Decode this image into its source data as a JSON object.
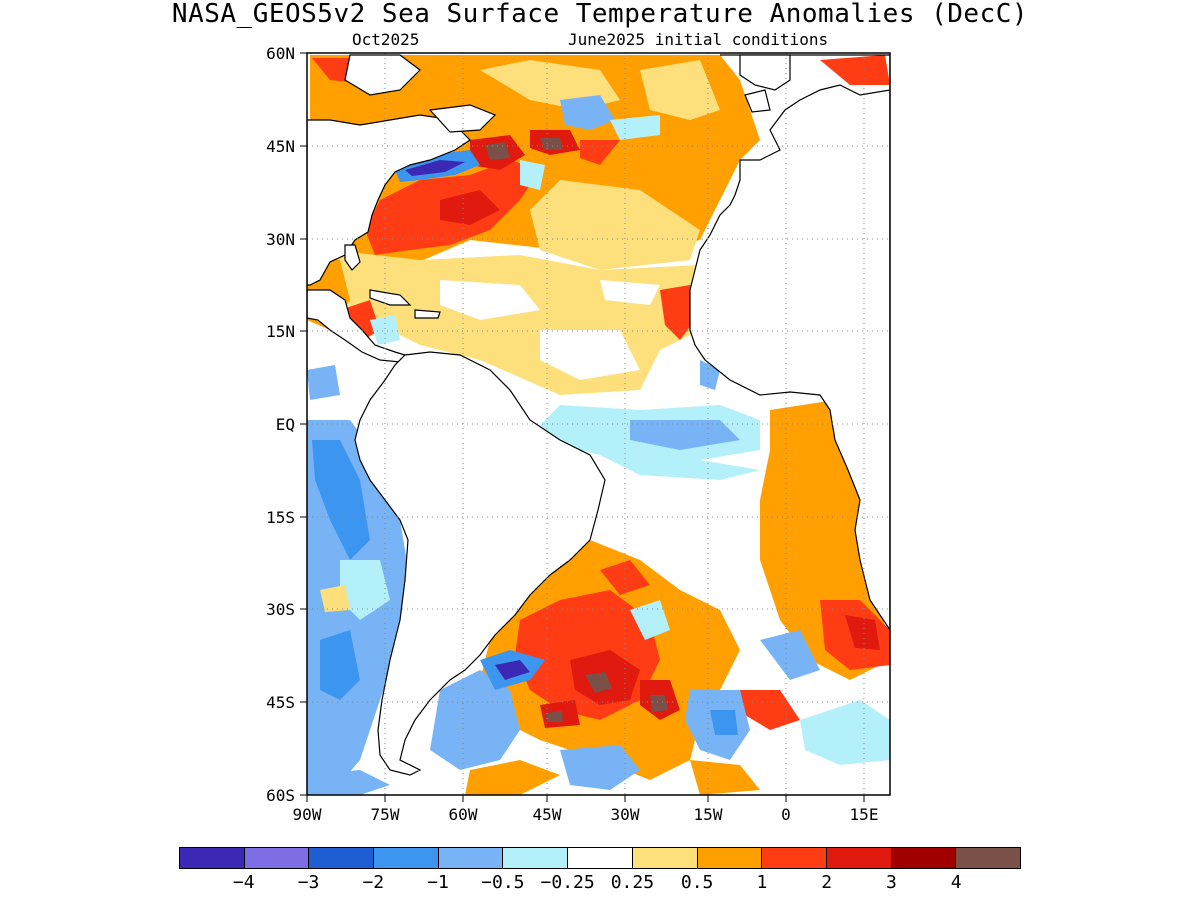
{
  "header": {
    "title": "NASA_GEOS5v2 Sea Surface Temperature Anomalies (DecC)",
    "left_subtitle": "Oct2025",
    "right_subtitle": "June2025 initial conditions"
  },
  "axes": {
    "lat_labels": [
      "60N",
      "45N",
      "30N",
      "15N",
      "EQ",
      "15S",
      "30S",
      "45S",
      "60S"
    ],
    "lon_labels": [
      "90W",
      "75W",
      "60W",
      "45W",
      "30W",
      "15W",
      "0",
      "15E"
    ]
  },
  "colorbar": {
    "colors": [
      "#3b28b4",
      "#7d6ee6",
      "#1e5ed2",
      "#3c96f0",
      "#78b4f5",
      "#b4f0fa",
      "#ffffff",
      "#fde07c",
      "#ffa000",
      "#ff3c14",
      "#e01a0e",
      "#a00000",
      "#7a5048"
    ],
    "labels": [
      "−4",
      "−3",
      "−2",
      "−1",
      "−0.5",
      "−0.25",
      "0.25",
      "0.5",
      "1",
      "2",
      "3",
      "4"
    ]
  },
  "map_colors": {
    "land": "#ffffff",
    "coast": "#000000",
    "grid": "#888888"
  }
}
